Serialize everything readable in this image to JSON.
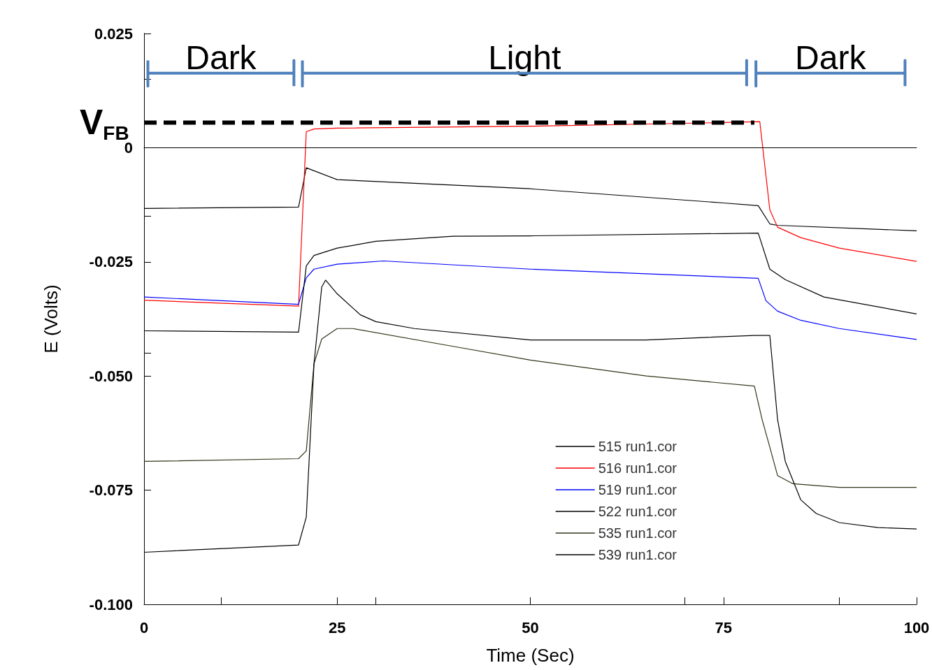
{
  "chart_data": {
    "type": "line",
    "xlabel": "Time (Sec)",
    "ylabel": "E (Volts)",
    "xlim": [
      0,
      100
    ],
    "xticks": [
      0,
      25,
      50,
      75,
      100
    ],
    "ylim": [
      -0.1,
      0.025
    ],
    "yticks": [
      {
        "value": -0.1,
        "label": "-0.100"
      },
      -0.075,
      {
        "value": -0.05,
        "label": "-0.050"
      },
      -0.025,
      0,
      0.025
    ],
    "grid": false,
    "legend": "bottom right",
    "marker": "none",
    "line_style": "solid",
    "ref_lines": [
      {
        "axis": "y",
        "value": 0,
        "color": "#000000"
      }
    ],
    "annotations": [
      {
        "text": "Dark",
        "x": 9.95,
        "y": 0.0163
      },
      {
        "text": "Light",
        "x": 49.25,
        "y": 0.0163
      },
      {
        "text": "Dark",
        "x": 88.85,
        "y": 0.0163
      }
    ],
    "series": [
      {
        "name": "515 run1.cor",
        "color": "#000000",
        "x": [
          0,
          20,
          21,
          25,
          50,
          75,
          79.5,
          81,
          82,
          100
        ],
        "values": [
          -0.0133,
          -0.013,
          -0.0044,
          -0.007,
          -0.009,
          -0.0121,
          -0.0127,
          -0.0167,
          -0.017,
          -0.0182
        ]
      },
      {
        "name": "516 run1.cor",
        "color": "#ff0000",
        "x": [
          0,
          20,
          21,
          22,
          25,
          50,
          75,
          79.7,
          81,
          82,
          85,
          90,
          100
        ],
        "values": [
          -0.0334,
          -0.0347,
          0.0035,
          0.0041,
          0.0043,
          0.0047,
          0.0055,
          0.0057,
          -0.0136,
          -0.0174,
          -0.0197,
          -0.022,
          -0.0249
        ]
      },
      {
        "name": "519 run1.cor",
        "color": "#0000ff",
        "x": [
          0,
          20,
          21,
          22,
          25,
          31,
          50,
          75,
          79.5,
          80.5,
          82,
          85,
          90,
          100
        ],
        "values": [
          -0.0327,
          -0.0343,
          -0.0285,
          -0.0266,
          -0.0255,
          -0.0248,
          -0.0266,
          -0.0283,
          -0.0286,
          -0.0335,
          -0.0358,
          -0.0378,
          -0.0396,
          -0.042
        ]
      },
      {
        "name": "522 run1.cor",
        "color": "#000000",
        "x": [
          0,
          20,
          21,
          22,
          25,
          30,
          40,
          50,
          75,
          79.5,
          81,
          83,
          88,
          100
        ],
        "values": [
          -0.0401,
          -0.0404,
          -0.0259,
          -0.0236,
          -0.022,
          -0.0205,
          -0.0194,
          -0.0193,
          -0.0188,
          -0.0187,
          -0.0266,
          -0.0289,
          -0.0327,
          -0.0364
        ]
      },
      {
        "name": "535 run1.cor",
        "color": "#333319",
        "x": [
          0,
          20,
          21,
          22,
          23,
          25,
          27,
          40,
          50,
          65,
          79,
          80,
          81,
          82,
          84,
          90,
          100
        ],
        "values": [
          -0.0687,
          -0.0681,
          -0.0664,
          -0.0473,
          -0.0419,
          -0.0396,
          -0.0396,
          -0.0435,
          -0.0465,
          -0.05,
          -0.0522,
          -0.0595,
          -0.0656,
          -0.0718,
          -0.0736,
          -0.0744,
          -0.0744
        ]
      },
      {
        "name": "539 run1.cor",
        "color": "#000000",
        "x": [
          0,
          20,
          21,
          22,
          23,
          23.5,
          25,
          28,
          30,
          35,
          50,
          65,
          79,
          81,
          82,
          83,
          85,
          87,
          90,
          95,
          100
        ],
        "values": [
          -0.0886,
          -0.087,
          -0.0809,
          -0.0473,
          -0.0305,
          -0.029,
          -0.032,
          -0.0366,
          -0.0381,
          -0.0396,
          -0.0421,
          -0.0421,
          -0.0411,
          -0.0411,
          -0.0595,
          -0.0687,
          -0.0771,
          -0.0801,
          -0.0821,
          -0.0832,
          -0.0835
        ]
      },
      {
        "type": "line",
        "color": "#4f81bd",
        "line_style": "solid",
        "x": [
          0.5,
          0.5,
          0.5,
          19.4,
          19.4,
          19.4
        ],
        "values": [
          0.0191,
          0.0135,
          0.0163,
          0.0163,
          0.0191,
          0.0135
        ]
      },
      {
        "type": "line",
        "color": "#4f81bd",
        "line_style": "solid",
        "x": [
          20.5,
          20.5,
          20.5,
          78,
          78,
          78
        ],
        "values": [
          0.0191,
          0.0135,
          0.0163,
          0.0163,
          0.0191,
          0.0135
        ]
      },
      {
        "type": "line",
        "color": "#4f81bd",
        "line_style": "solid",
        "x": [
          79.2,
          79.2,
          79.2,
          98.5,
          98.5,
          98.5
        ],
        "values": [
          0.0191,
          0.0135,
          0.0163,
          0.0163,
          0.0191,
          0.0135
        ]
      },
      {
        "type": "line",
        "name": "V$_{FB}$",
        "color": "#000000",
        "line_style": "dashed",
        "x": [
          0,
          79
        ],
        "values": [
          0.0055,
          0.0055
        ]
      }
    ]
  }
}
